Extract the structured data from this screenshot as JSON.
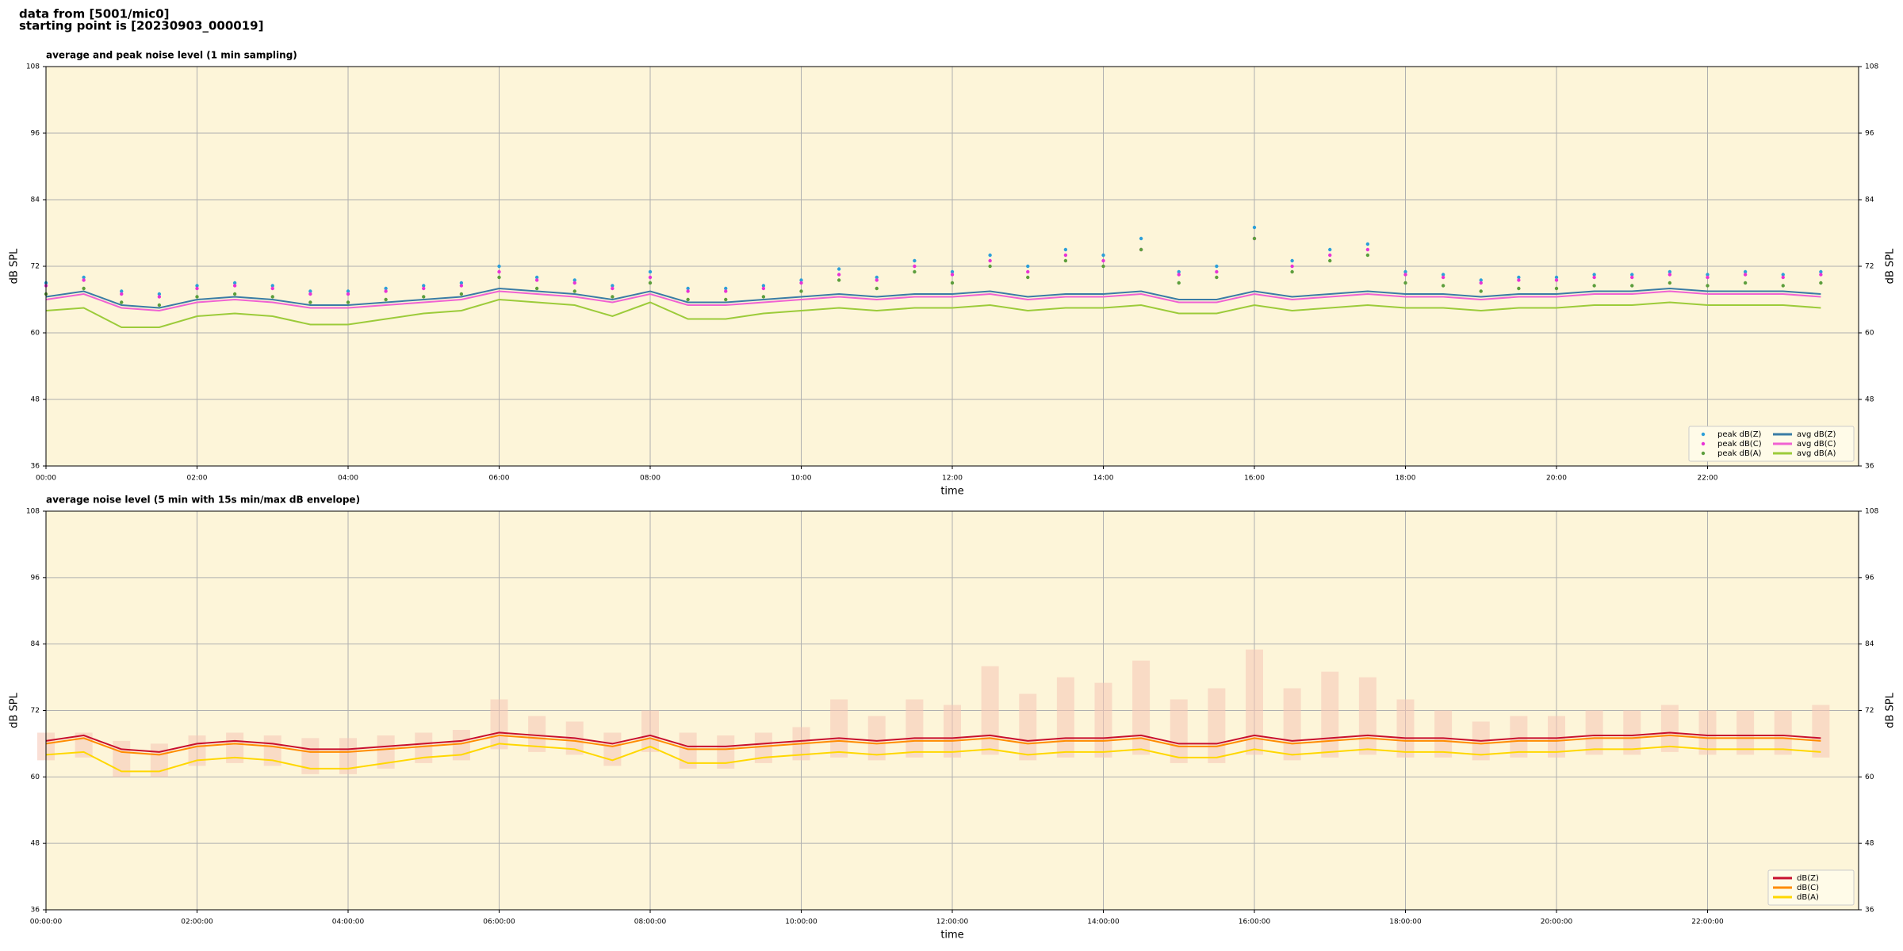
{
  "header": {
    "line1": "data from [5001/mic0]",
    "line2": "starting point is [20230903_000019]"
  },
  "chart_data": [
    {
      "type": "line",
      "title": "average and peak noise level (1 min sampling)",
      "xlabel": "time",
      "ylabel": "dB SPL",
      "xlim": [
        0,
        24
      ],
      "ylim": [
        36,
        108
      ],
      "yticks": [
        36,
        48,
        60,
        72,
        84,
        96,
        108
      ],
      "grid": true,
      "legend": "lower right",
      "legend_ncol": 2,
      "background": "#fdf5d9",
      "xticks": [
        {
          "value": 0,
          "label": "00:00"
        },
        {
          "value": 2,
          "label": "02:00"
        },
        {
          "value": 4,
          "label": "04:00"
        },
        {
          "value": 6,
          "label": "06:00"
        },
        {
          "value": 8,
          "label": "08:00"
        },
        {
          "value": 10,
          "label": "10:00"
        },
        {
          "value": 12,
          "label": "12:00"
        },
        {
          "value": 14,
          "label": "14:00"
        },
        {
          "value": 16,
          "label": "16:00"
        },
        {
          "value": 18,
          "label": "18:00"
        },
        {
          "value": 20,
          "label": "20:00"
        },
        {
          "value": 22,
          "label": "22:00"
        }
      ],
      "x": [
        0,
        0.5,
        1,
        1.5,
        2,
        2.5,
        3,
        3.5,
        4,
        4.5,
        5,
        5.5,
        6,
        6.5,
        7,
        7.5,
        8,
        8.5,
        9,
        9.5,
        10,
        10.5,
        11,
        11.5,
        12,
        12.5,
        13,
        13.5,
        14,
        14.5,
        15,
        15.5,
        16,
        16.5,
        17,
        17.5,
        18,
        18.5,
        19,
        19.5,
        20,
        20.5,
        21,
        21.5,
        22,
        22.5,
        23,
        23.5
      ],
      "series": [
        {
          "name": "peak dB(Z)",
          "style": "scatter",
          "color": "#2c9fd9",
          "values": [
            69,
            70,
            67.5,
            67,
            68.5,
            69,
            68.5,
            67.5,
            67.5,
            68,
            68.5,
            69,
            72,
            70,
            69.5,
            68.5,
            71,
            68,
            68,
            68.5,
            69.5,
            71.5,
            70,
            73,
            71,
            74,
            72,
            75,
            74,
            77,
            71,
            72,
            79,
            73,
            75,
            76,
            71,
            70.5,
            69.5,
            70,
            70,
            70.5,
            70.5,
            71,
            70.5,
            71,
            70.5,
            71
          ]
        },
        {
          "name": "peak dB(C)",
          "style": "scatter",
          "color": "#e833d6",
          "values": [
            68.5,
            69.5,
            67,
            66.5,
            68,
            68.5,
            68,
            67,
            67,
            67.5,
            68,
            68.5,
            71,
            69.5,
            69,
            68,
            70,
            67.5,
            67.5,
            68,
            69,
            70.5,
            69.5,
            72,
            70.5,
            73,
            71,
            74,
            73,
            75,
            70.5,
            71,
            77,
            72,
            74,
            75,
            70.5,
            70,
            69,
            69.5,
            69.5,
            70,
            70,
            70.5,
            70,
            70.5,
            70,
            70.5
          ]
        },
        {
          "name": "peak dB(A)",
          "style": "scatter",
          "color": "#5c9e3c",
          "values": [
            67,
            68,
            65.5,
            65,
            66.5,
            67,
            66.5,
            65.5,
            65.5,
            66,
            66.5,
            67,
            70,
            68,
            67.5,
            66.5,
            69,
            66,
            66,
            66.5,
            67.5,
            69.5,
            68,
            71,
            69,
            72,
            70,
            73,
            72,
            75,
            69,
            70,
            77,
            71,
            73,
            74,
            69,
            68.5,
            67.5,
            68,
            68,
            68.5,
            68.5,
            69,
            68.5,
            69,
            68.5,
            69
          ]
        },
        {
          "name": "avg dB(Z)",
          "style": "line",
          "color": "#3a7ca5",
          "values": [
            66.5,
            67.5,
            65,
            64.5,
            66,
            66.5,
            66,
            65,
            65,
            65.5,
            66,
            66.5,
            68,
            67.5,
            67,
            66,
            67.5,
            65.5,
            65.5,
            66,
            66.5,
            67,
            66.5,
            67,
            67,
            67.5,
            66.5,
            67,
            67,
            67.5,
            66,
            66,
            67.5,
            66.5,
            67,
            67.5,
            67,
            67,
            66.5,
            67,
            67,
            67.5,
            67.5,
            68,
            67.5,
            67.5,
            67.5,
            67
          ]
        },
        {
          "name": "avg dB(C)",
          "style": "line",
          "color": "#f062d2",
          "values": [
            66,
            67,
            64.5,
            64,
            65.5,
            66,
            65.5,
            64.5,
            64.5,
            65,
            65.5,
            66,
            67.5,
            67,
            66.5,
            65.5,
            67,
            65,
            65,
            65.5,
            66,
            66.5,
            66,
            66.5,
            66.5,
            67,
            66,
            66.5,
            66.5,
            67,
            65.5,
            65.5,
            67,
            66,
            66.5,
            67,
            66.5,
            66.5,
            66,
            66.5,
            66.5,
            67,
            67,
            67.5,
            67,
            67,
            67,
            66.5
          ]
        },
        {
          "name": "avg dB(A)",
          "style": "line",
          "color": "#9ccb3a",
          "values": [
            64,
            64.5,
            61,
            61,
            63,
            63.5,
            63,
            61.5,
            61.5,
            62.5,
            63.5,
            64,
            66,
            65.5,
            65,
            63,
            65.5,
            62.5,
            62.5,
            63.5,
            64,
            64.5,
            64,
            64.5,
            64.5,
            65,
            64,
            64.5,
            64.5,
            65,
            63.5,
            63.5,
            65,
            64,
            64.5,
            65,
            64.5,
            64.5,
            64,
            64.5,
            64.5,
            65,
            65,
            65.5,
            65,
            65,
            65,
            64.5
          ]
        }
      ]
    },
    {
      "type": "line",
      "title": "average noise level (5 min with 15s min/max dB envelope)",
      "xlabel": "time",
      "ylabel": "dB SPL",
      "xlim": [
        0,
        24
      ],
      "ylim": [
        36,
        108
      ],
      "yticks": [
        36,
        48,
        60,
        72,
        84,
        96,
        108
      ],
      "grid": true,
      "legend": "lower right",
      "legend_ncol": 1,
      "background": "#fdf5d9",
      "xticks": [
        {
          "value": 0,
          "label": "00:00:00"
        },
        {
          "value": 2,
          "label": "02:00:00"
        },
        {
          "value": 4,
          "label": "04:00:00"
        },
        {
          "value": 6,
          "label": "06:00:00"
        },
        {
          "value": 8,
          "label": "08:00:00"
        },
        {
          "value": 10,
          "label": "10:00:00"
        },
        {
          "value": 12,
          "label": "12:00:00"
        },
        {
          "value": 14,
          "label": "14:00:00"
        },
        {
          "value": 16,
          "label": "16:00:00"
        },
        {
          "value": 18,
          "label": "18:00:00"
        },
        {
          "value": 20,
          "label": "20:00:00"
        },
        {
          "value": 22,
          "label": "22:00:00"
        }
      ],
      "x": [
        0,
        0.5,
        1,
        1.5,
        2,
        2.5,
        3,
        3.5,
        4,
        4.5,
        5,
        5.5,
        6,
        6.5,
        7,
        7.5,
        8,
        8.5,
        9,
        9.5,
        10,
        10.5,
        11,
        11.5,
        12,
        12.5,
        13,
        13.5,
        14,
        14.5,
        15,
        15.5,
        16,
        16.5,
        17,
        17.5,
        18,
        18.5,
        19,
        19.5,
        20,
        20.5,
        21,
        21.5,
        22,
        22.5,
        23,
        23.5
      ],
      "envelope": {
        "color": "#f5c4b4",
        "low": [
          63,
          63.5,
          60,
          60,
          62,
          62.5,
          62,
          60.5,
          60.5,
          61.5,
          62.5,
          63,
          65,
          64.5,
          64,
          62,
          64.5,
          61.5,
          61.5,
          62.5,
          63,
          63.5,
          63,
          63.5,
          63.5,
          64,
          63,
          63.5,
          63.5,
          64,
          62.5,
          62.5,
          64,
          63,
          63.5,
          64,
          63.5,
          63.5,
          63,
          63.5,
          63.5,
          64,
          64,
          64.5,
          64,
          64,
          64,
          63.5
        ],
        "high": [
          68,
          68,
          66.5,
          66,
          67.5,
          68,
          67.5,
          67,
          67,
          67.5,
          68,
          68.5,
          74,
          71,
          70,
          68,
          72,
          68,
          67.5,
          68,
          69,
          74,
          71,
          74,
          73,
          80,
          75,
          78,
          77,
          81,
          74,
          76,
          83,
          76,
          79,
          78,
          74,
          72,
          70,
          71,
          71,
          72,
          72,
          73,
          72,
          72,
          72,
          73
        ]
      },
      "series": [
        {
          "name": "dB(Z)",
          "style": "line",
          "color": "#c8102e",
          "values": [
            66.5,
            67.5,
            65,
            64.5,
            66,
            66.5,
            66,
            65,
            65,
            65.5,
            66,
            66.5,
            68,
            67.5,
            67,
            66,
            67.5,
            65.5,
            65.5,
            66,
            66.5,
            67,
            66.5,
            67,
            67,
            67.5,
            66.5,
            67,
            67,
            67.5,
            66,
            66,
            67.5,
            66.5,
            67,
            67.5,
            67,
            67,
            66.5,
            67,
            67,
            67.5,
            67.5,
            68,
            67.5,
            67.5,
            67.5,
            67
          ]
        },
        {
          "name": "dB(C)",
          "style": "line",
          "color": "#ff8c00",
          "values": [
            66,
            67,
            64.5,
            64,
            65.5,
            66,
            65.5,
            64.5,
            64.5,
            65,
            65.5,
            66,
            67.5,
            67,
            66.5,
            65.5,
            67,
            65,
            65,
            65.5,
            66,
            66.5,
            66,
            66.5,
            66.5,
            67,
            66,
            66.5,
            66.5,
            67,
            65.5,
            65.5,
            67,
            66,
            66.5,
            67,
            66.5,
            66.5,
            66,
            66.5,
            66.5,
            67,
            67,
            67.5,
            67,
            67,
            67,
            66.5
          ]
        },
        {
          "name": "dB(A)",
          "style": "line",
          "color": "#ffd700",
          "values": [
            64,
            64.5,
            61,
            61,
            63,
            63.5,
            63,
            61.5,
            61.5,
            62.5,
            63.5,
            64,
            66,
            65.5,
            65,
            63,
            65.5,
            62.5,
            62.5,
            63.5,
            64,
            64.5,
            64,
            64.5,
            64.5,
            65,
            64,
            64.5,
            64.5,
            65,
            63.5,
            63.5,
            65,
            64,
            64.5,
            65,
            64.5,
            64.5,
            64,
            64.5,
            64.5,
            65,
            65,
            65.5,
            65,
            65,
            65,
            64.5
          ]
        }
      ]
    }
  ]
}
